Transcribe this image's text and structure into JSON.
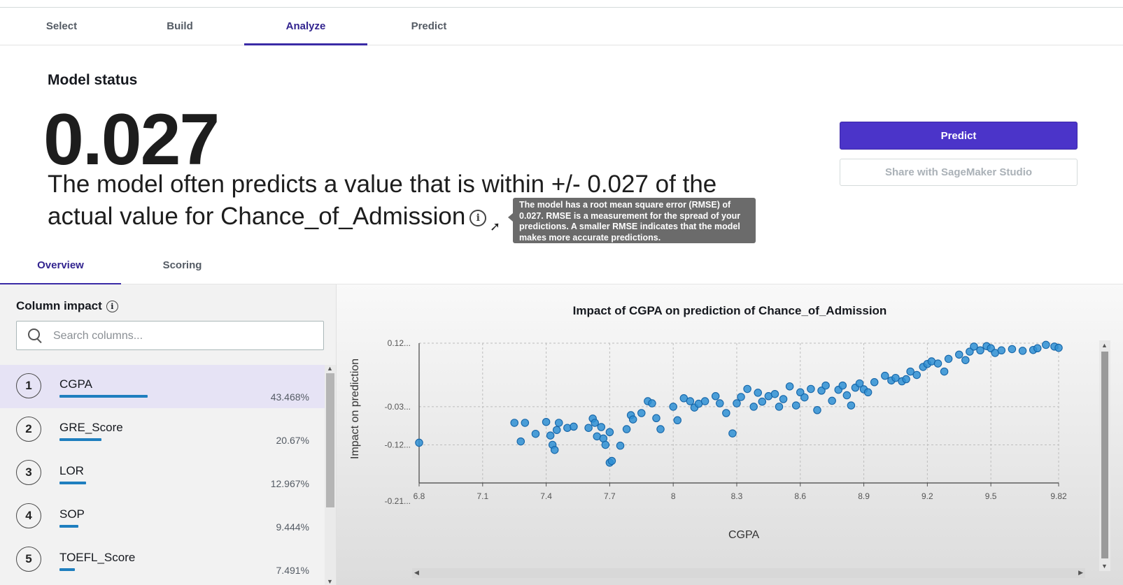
{
  "tabs": [
    {
      "label": "Select"
    },
    {
      "label": "Build"
    },
    {
      "label": "Analyze",
      "active": true
    },
    {
      "label": "Predict"
    }
  ],
  "status": {
    "heading": "Model status",
    "metric": "0.027",
    "description": "The model often predicts a value that is within +/- 0.027 of the actual value for Chance_of_Admission",
    "tooltip": "The model has a root mean square error (RMSE) of 0.027. RMSE is a measurement for the spread of your predictions. A smaller RMSE indicates that the model makes more accurate predictions."
  },
  "actions": {
    "predict_label": "Predict",
    "share_label": "Share with SageMaker Studio"
  },
  "subtabs": [
    {
      "label": "Overview",
      "active": true
    },
    {
      "label": "Scoring"
    }
  ],
  "column_impact": {
    "title": "Column impact",
    "search_placeholder": "Search columns...",
    "columns": [
      {
        "rank": "1",
        "name": "CGPA",
        "pct": "43.468%",
        "fraction": 0.43468
      },
      {
        "rank": "2",
        "name": "GRE_Score",
        "pct": "20.67%",
        "fraction": 0.2067
      },
      {
        "rank": "3",
        "name": "LOR",
        "pct": "12.967%",
        "fraction": 0.12967
      },
      {
        "rank": "4",
        "name": "SOP",
        "pct": "9.444%",
        "fraction": 0.09444
      },
      {
        "rank": "5",
        "name": "TOEFL_Score",
        "pct": "7.491%",
        "fraction": 0.07491
      }
    ]
  },
  "colors": {
    "accent": "#4b34c9",
    "bar": "#1f7fbf",
    "point": "#2e8fd4"
  },
  "chart_data": {
    "type": "scatter",
    "title": "Impact of CGPA on prediction of Chance_of_Admission",
    "xlabel": "CGPA",
    "ylabel": "Impact on prediction",
    "xlim": [
      6.8,
      9.82
    ],
    "ylim": [
      -0.21,
      0.12
    ],
    "x_ticks": [
      "6.8",
      "7.1",
      "7.4",
      "7.7",
      "8",
      "8.3",
      "8.6",
      "8.9",
      "9.2",
      "9.5",
      "9.82"
    ],
    "y_ticks": [
      "0.12...",
      "-0.03...",
      "-0.12...",
      "-0.21..."
    ],
    "grid": true,
    "points": [
      [
        6.8,
        -0.115
      ],
      [
        7.25,
        -0.068
      ],
      [
        7.28,
        -0.112
      ],
      [
        7.3,
        -0.068
      ],
      [
        7.35,
        -0.094
      ],
      [
        7.4,
        -0.066
      ],
      [
        7.42,
        -0.098
      ],
      [
        7.43,
        -0.12
      ],
      [
        7.44,
        -0.132
      ],
      [
        7.45,
        -0.085
      ],
      [
        7.46,
        -0.068
      ],
      [
        7.5,
        -0.08
      ],
      [
        7.53,
        -0.077
      ],
      [
        7.6,
        -0.08
      ],
      [
        7.62,
        -0.058
      ],
      [
        7.63,
        -0.068
      ],
      [
        7.64,
        -0.1
      ],
      [
        7.66,
        -0.078
      ],
      [
        7.67,
        -0.105
      ],
      [
        7.68,
        -0.12
      ],
      [
        7.7,
        -0.09
      ],
      [
        7.7,
        -0.162
      ],
      [
        7.71,
        -0.158
      ],
      [
        7.75,
        -0.122
      ],
      [
        7.78,
        -0.083
      ],
      [
        7.8,
        -0.05
      ],
      [
        7.81,
        -0.06
      ],
      [
        7.85,
        -0.045
      ],
      [
        7.88,
        -0.017
      ],
      [
        7.9,
        -0.022
      ],
      [
        7.92,
        -0.057
      ],
      [
        7.94,
        -0.083
      ],
      [
        8.0,
        -0.03
      ],
      [
        8.02,
        -0.062
      ],
      [
        8.05,
        -0.01
      ],
      [
        8.08,
        -0.017
      ],
      [
        8.1,
        -0.032
      ],
      [
        8.12,
        -0.023
      ],
      [
        8.15,
        -0.017
      ],
      [
        8.2,
        -0.005
      ],
      [
        8.22,
        -0.022
      ],
      [
        8.25,
        -0.045
      ],
      [
        8.28,
        -0.093
      ],
      [
        8.3,
        -0.022
      ],
      [
        8.32,
        -0.007
      ],
      [
        8.35,
        0.012
      ],
      [
        8.38,
        -0.03
      ],
      [
        8.4,
        0.003
      ],
      [
        8.42,
        -0.018
      ],
      [
        8.45,
        -0.005
      ],
      [
        8.48,
        0.0
      ],
      [
        8.5,
        -0.03
      ],
      [
        8.52,
        -0.012
      ],
      [
        8.55,
        0.018
      ],
      [
        8.58,
        -0.027
      ],
      [
        8.6,
        0.004
      ],
      [
        8.62,
        -0.008
      ],
      [
        8.65,
        0.012
      ],
      [
        8.68,
        -0.038
      ],
      [
        8.7,
        0.008
      ],
      [
        8.72,
        0.02
      ],
      [
        8.75,
        -0.016
      ],
      [
        8.78,
        0.01
      ],
      [
        8.8,
        0.02
      ],
      [
        8.82,
        -0.003
      ],
      [
        8.84,
        -0.027
      ],
      [
        8.86,
        0.015
      ],
      [
        8.88,
        0.025
      ],
      [
        8.9,
        0.011
      ],
      [
        8.92,
        0.004
      ],
      [
        8.95,
        0.028
      ],
      [
        9.0,
        0.043
      ],
      [
        9.03,
        0.032
      ],
      [
        9.05,
        0.038
      ],
      [
        9.08,
        0.03
      ],
      [
        9.1,
        0.035
      ],
      [
        9.12,
        0.053
      ],
      [
        9.15,
        0.045
      ],
      [
        9.18,
        0.064
      ],
      [
        9.2,
        0.071
      ],
      [
        9.22,
        0.077
      ],
      [
        9.25,
        0.072
      ],
      [
        9.28,
        0.053
      ],
      [
        9.3,
        0.083
      ],
      [
        9.35,
        0.093
      ],
      [
        9.38,
        0.08
      ],
      [
        9.4,
        0.1
      ],
      [
        9.42,
        0.112
      ],
      [
        9.45,
        0.103
      ],
      [
        9.48,
        0.113
      ],
      [
        9.5,
        0.108
      ],
      [
        9.52,
        0.097
      ],
      [
        9.55,
        0.103
      ],
      [
        9.6,
        0.106
      ],
      [
        9.65,
        0.102
      ],
      [
        9.7,
        0.104
      ],
      [
        9.72,
        0.108
      ],
      [
        9.76,
        0.116
      ],
      [
        9.8,
        0.112
      ],
      [
        9.82,
        0.109
      ]
    ]
  }
}
